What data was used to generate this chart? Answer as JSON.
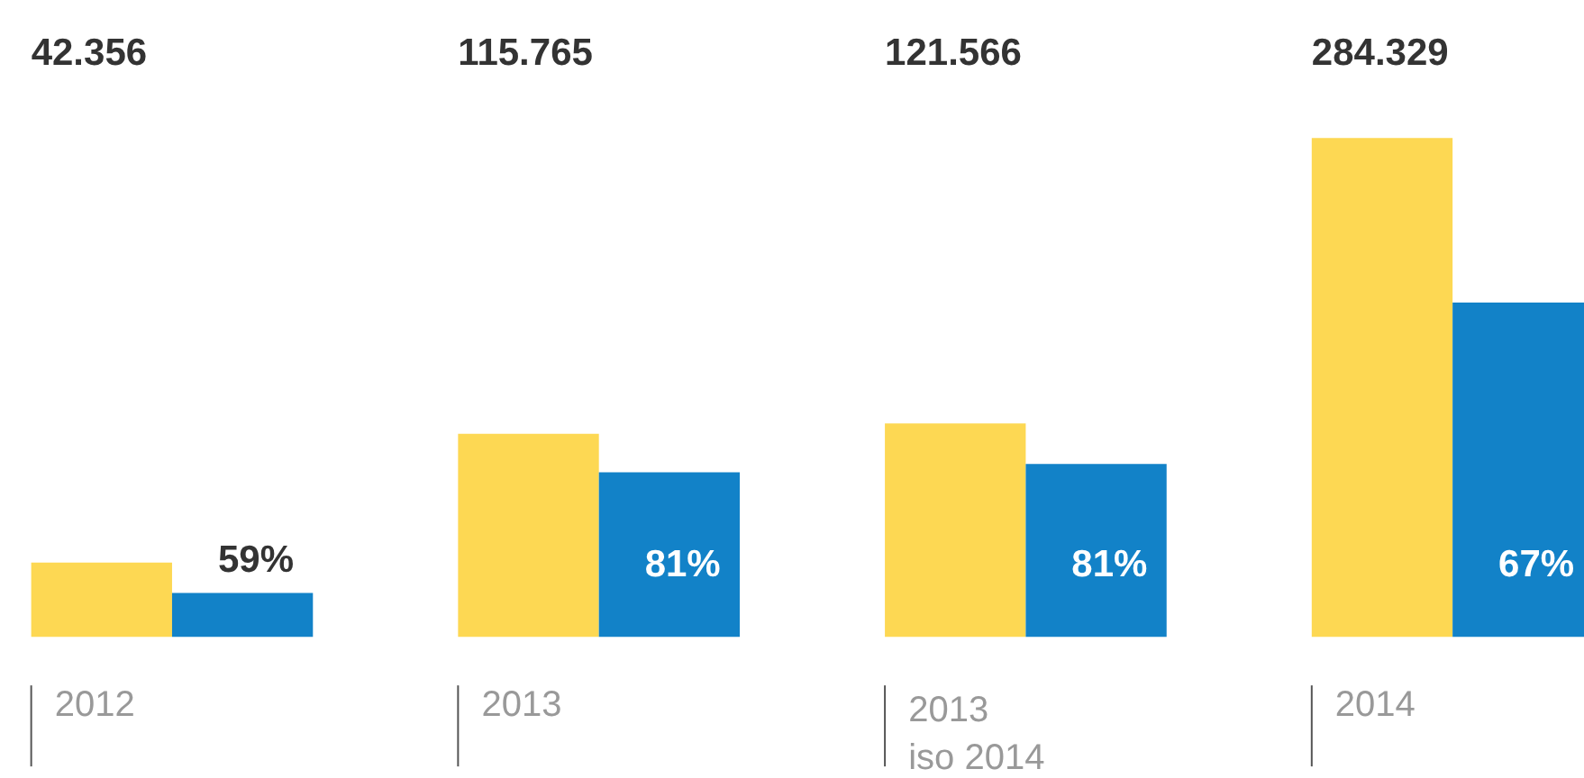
{
  "chart_data": {
    "type": "bar",
    "categories": [
      "2012",
      "2013",
      "2013\niso 2014",
      "2014"
    ],
    "series": [
      {
        "color": "#fdd853",
        "values": [
          42356,
          115765,
          121566,
          284329
        ],
        "value_labels": [
          "42.356",
          "115.765",
          "121.566",
          "284.329"
        ]
      },
      {
        "color": "#1282c8",
        "values": [
          25000,
          93800,
          98500,
          190500
        ]
      }
    ],
    "annotations": [
      "59%",
      "81%",
      "81%",
      "67%"
    ],
    "grid": false
  }
}
